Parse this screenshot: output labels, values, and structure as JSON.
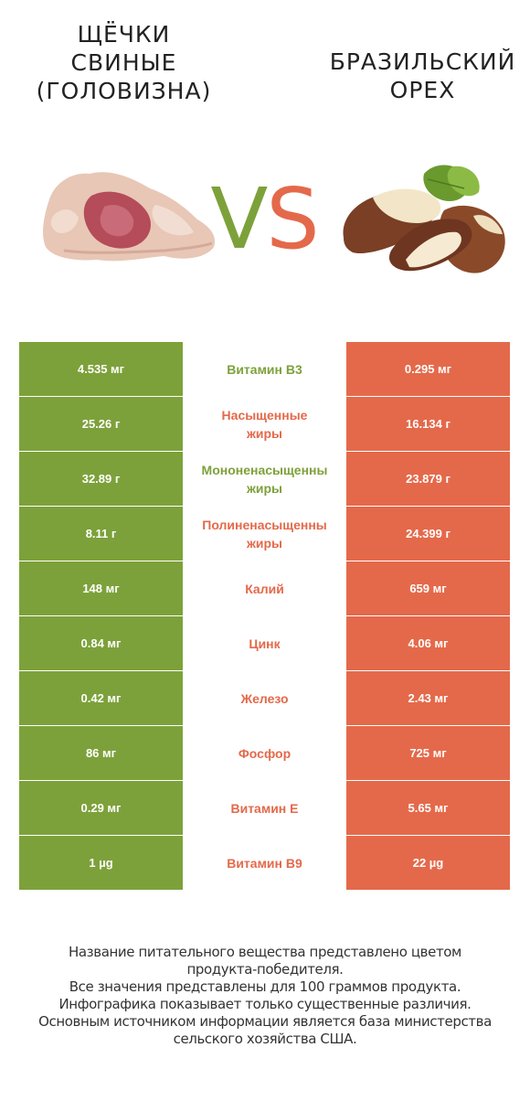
{
  "left_product": {
    "title": "ЩЁЧКИ\nСВИНЫЕ\n(ГОЛОВИЗНА)",
    "color": "#7da13a",
    "image": "pork-cheek-image"
  },
  "right_product": {
    "title": "БРАЗИЛЬСКИЙ\nОРЕХ",
    "color": "#e4694a",
    "image": "brazil-nut-image"
  },
  "vs": {
    "v": "V",
    "s": "S"
  },
  "rows": [
    {
      "left": "4.535 мг",
      "name": [
        "Витамин B3"
      ],
      "winner": "left",
      "right": "0.295 мг"
    },
    {
      "left": "25.26 г",
      "name": [
        "Насыщенные",
        "жиры"
      ],
      "winner": "right",
      "right": "16.134 г"
    },
    {
      "left": "32.89 г",
      "name": [
        "Мононенасыщенны",
        "жиры"
      ],
      "winner": "left",
      "right": "23.879 г"
    },
    {
      "left": "8.11 г",
      "name": [
        "Полиненасыщенны",
        "жиры"
      ],
      "winner": "right",
      "right": "24.399 г"
    },
    {
      "left": "148 мг",
      "name": [
        "Калий"
      ],
      "winner": "right",
      "right": "659 мг"
    },
    {
      "left": "0.84 мг",
      "name": [
        "Цинк"
      ],
      "winner": "right",
      "right": "4.06 мг"
    },
    {
      "left": "0.42 мг",
      "name": [
        "Железо"
      ],
      "winner": "right",
      "right": "2.43 мг"
    },
    {
      "left": "86 мг",
      "name": [
        "Фосфор"
      ],
      "winner": "right",
      "right": "725 мг"
    },
    {
      "left": "0.29 мг",
      "name": [
        "Витамин E"
      ],
      "winner": "right",
      "right": "5.65 мг"
    },
    {
      "left": "1 µg",
      "name": [
        "Витамин B9"
      ],
      "winner": "right",
      "right": "22 µg"
    }
  ],
  "footnote": [
    "Название питательного вещества представлено цветом",
    "продукта-победителя.",
    "Все значения представлены для 100 граммов продукта.",
    "Инфографика показывает только существенные различия.",
    "Основным источником информации является база министерства",
    "сельского хозяйства США."
  ]
}
